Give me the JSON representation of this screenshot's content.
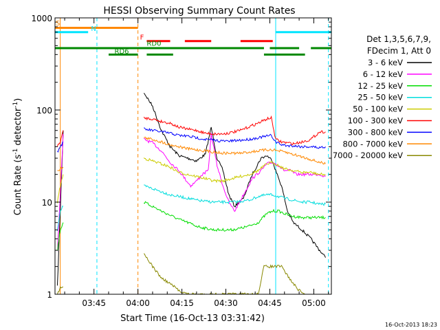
{
  "chart_data": {
    "type": "line",
    "title": "HESSI Observing Summary Count Rates",
    "xlabel": "Start Time (16-Oct-13 03:31:42)",
    "ylabel_main": "Count Rate (s",
    "ylabel_sup1": "-1",
    "ylabel_mid": " detector",
    "ylabel_sup2": "-1",
    "ylabel_end": ")",
    "timestamp": "16-Oct-2013 18:23",
    "y_scale": "log",
    "xlim_minutes": [
      211.7,
      306.0
    ],
    "ylim": [
      1,
      1000
    ],
    "x_ticks": [
      {
        "label": "03:45",
        "minute": 225
      },
      {
        "label": "04:00",
        "minute": 240
      },
      {
        "label": "04:15",
        "minute": 255
      },
      {
        "label": "04:30",
        "minute": 270
      },
      {
        "label": "04:45",
        "minute": 285
      },
      {
        "label": "05:00",
        "minute": 300
      }
    ],
    "y_ticks": [
      {
        "label": "1",
        "value": 1
      },
      {
        "label": "10",
        "value": 10
      },
      {
        "label": "100",
        "value": 100
      },
      {
        "label": "1000",
        "value": 1000
      }
    ],
    "legend_header": [
      "Det 1,3,5,6,7,9,",
      "FDecim 1, Att 0"
    ],
    "series": [
      {
        "name": "3 - 6 keV",
        "color": "#000000",
        "points": [
          [
            212.5,
            1.2
          ],
          [
            213.5,
            8
          ],
          [
            214.5,
            60
          ],
          [
            240,
            null
          ],
          [
            242,
            155
          ],
          [
            245,
            110
          ],
          [
            248,
            60
          ],
          [
            251,
            40
          ],
          [
            254,
            32
          ],
          [
            257,
            30
          ],
          [
            260,
            28
          ],
          [
            263,
            33
          ],
          [
            265,
            65
          ],
          [
            267,
            30
          ],
          [
            269,
            22
          ],
          [
            271,
            12
          ],
          [
            273,
            9
          ],
          [
            276,
            11
          ],
          [
            279,
            20
          ],
          [
            282,
            30
          ],
          [
            284,
            32
          ],
          [
            286,
            28
          ],
          [
            287,
            22
          ],
          [
            289,
            15
          ],
          [
            291,
            8
          ],
          [
            293,
            6
          ],
          [
            296,
            5
          ],
          [
            299,
            4
          ],
          [
            302,
            3
          ],
          [
            304,
            2.5
          ]
        ]
      },
      {
        "name": "6 - 12 keV",
        "color": "#ff00ff",
        "points": [
          [
            212.5,
            3
          ],
          [
            213.5,
            12
          ],
          [
            214.5,
            55
          ],
          [
            240,
            null
          ],
          [
            242,
            48
          ],
          [
            245,
            44
          ],
          [
            248,
            36
          ],
          [
            251,
            27
          ],
          [
            254,
            22
          ],
          [
            256,
            18
          ],
          [
            258,
            15
          ],
          [
            260,
            17
          ],
          [
            262,
            20
          ],
          [
            264,
            22
          ],
          [
            265,
            55
          ],
          [
            267,
            25
          ],
          [
            269,
            15
          ],
          [
            271,
            10
          ],
          [
            273,
            8
          ],
          [
            276,
            12
          ],
          [
            279,
            18
          ],
          [
            282,
            22
          ],
          [
            284,
            26
          ],
          [
            286,
            27
          ],
          [
            288,
            25
          ],
          [
            290,
            22
          ],
          [
            292,
            22
          ],
          [
            294,
            20
          ],
          [
            297,
            20
          ],
          [
            300,
            20
          ],
          [
            302,
            20
          ],
          [
            304,
            19
          ]
        ]
      },
      {
        "name": "12 - 25 keV",
        "color": "#00dd00",
        "points": [
          [
            212.5,
            3
          ],
          [
            213.5,
            5
          ],
          [
            214.5,
            6
          ],
          [
            240,
            null
          ],
          [
            242,
            10
          ],
          [
            245,
            9
          ],
          [
            248,
            8
          ],
          [
            251,
            7.2
          ],
          [
            254,
            6.5
          ],
          [
            257,
            6
          ],
          [
            260,
            5.5
          ],
          [
            263,
            5.2
          ],
          [
            266,
            5
          ],
          [
            269,
            5
          ],
          [
            272,
            5
          ],
          [
            275,
            5.2
          ],
          [
            278,
            5.5
          ],
          [
            281,
            6
          ],
          [
            284,
            7.5
          ],
          [
            286,
            8
          ],
          [
            288,
            8
          ],
          [
            290,
            7.5
          ],
          [
            293,
            7
          ],
          [
            296,
            6.8
          ],
          [
            299,
            6.8
          ],
          [
            302,
            6.8
          ],
          [
            304,
            6.8
          ]
        ]
      },
      {
        "name": "25 - 50 keV",
        "color": "#00dddd",
        "points": [
          [
            212.5,
            5
          ],
          [
            213.5,
            8
          ],
          [
            214.5,
            9
          ],
          [
            240,
            null
          ],
          [
            242,
            15
          ],
          [
            245,
            14
          ],
          [
            248,
            13
          ],
          [
            251,
            12
          ],
          [
            254,
            11.5
          ],
          [
            257,
            11
          ],
          [
            260,
            10.5
          ],
          [
            263,
            10.2
          ],
          [
            266,
            10
          ],
          [
            269,
            10
          ],
          [
            272,
            10
          ],
          [
            275,
            10.2
          ],
          [
            278,
            10.5
          ],
          [
            281,
            11.5
          ],
          [
            284,
            12
          ],
          [
            286,
            12
          ],
          [
            288,
            11.5
          ],
          [
            290,
            11
          ],
          [
            293,
            10.5
          ],
          [
            296,
            10
          ],
          [
            299,
            10
          ],
          [
            302,
            9.5
          ],
          [
            304,
            9.5
          ]
        ]
      },
      {
        "name": "50 - 100 keV",
        "color": "#cccc00",
        "points": [
          [
            212.5,
            10
          ],
          [
            213.5,
            15
          ],
          [
            214.5,
            20
          ],
          [
            240,
            null
          ],
          [
            242,
            30
          ],
          [
            245,
            28
          ],
          [
            248,
            26
          ],
          [
            251,
            24
          ],
          [
            254,
            21
          ],
          [
            257,
            20
          ],
          [
            260,
            19
          ],
          [
            263,
            18
          ],
          [
            266,
            17
          ],
          [
            269,
            17
          ],
          [
            272,
            18
          ],
          [
            275,
            19
          ],
          [
            278,
            20
          ],
          [
            281,
            22
          ],
          [
            284,
            26
          ],
          [
            286,
            27
          ],
          [
            288,
            25
          ],
          [
            290,
            23
          ],
          [
            293,
            22
          ],
          [
            296,
            21
          ],
          [
            299,
            21
          ],
          [
            302,
            20
          ],
          [
            304,
            20
          ]
        ]
      },
      {
        "name": "100 - 300 keV",
        "color": "#ff0000",
        "points": [
          [
            212.5,
            40
          ],
          [
            213.5,
            45
          ],
          [
            214.5,
            60
          ],
          [
            240,
            null
          ],
          [
            242,
            82
          ],
          [
            245,
            80
          ],
          [
            248,
            75
          ],
          [
            251,
            72
          ],
          [
            254,
            65
          ],
          [
            257,
            62
          ],
          [
            260,
            60
          ],
          [
            263,
            56
          ],
          [
            266,
            55
          ],
          [
            269,
            55
          ],
          [
            272,
            57
          ],
          [
            275,
            60
          ],
          [
            278,
            66
          ],
          [
            281,
            72
          ],
          [
            284,
            80
          ],
          [
            285.5,
            82
          ],
          [
            287,
            48
          ],
          [
            289,
            45
          ],
          [
            291,
            44
          ],
          [
            293,
            43
          ],
          [
            296,
            45
          ],
          [
            299,
            48
          ],
          [
            302,
            58
          ],
          [
            304,
            58
          ]
        ]
      },
      {
        "name": "300 - 800 keV",
        "color": "#0000ff",
        "points": [
          [
            212.5,
            35
          ],
          [
            213.5,
            40
          ],
          [
            214.5,
            45
          ],
          [
            240,
            null
          ],
          [
            242,
            62
          ],
          [
            245,
            60
          ],
          [
            248,
            58
          ],
          [
            251,
            56
          ],
          [
            254,
            53
          ],
          [
            257,
            52
          ],
          [
            260,
            50
          ],
          [
            263,
            48
          ],
          [
            266,
            47
          ],
          [
            269,
            46
          ],
          [
            272,
            46
          ],
          [
            275,
            47
          ],
          [
            278,
            48
          ],
          [
            281,
            50
          ],
          [
            284,
            52
          ],
          [
            285.5,
            53
          ],
          [
            287,
            45
          ],
          [
            289,
            42
          ],
          [
            291,
            41
          ],
          [
            293,
            41
          ],
          [
            296,
            40
          ],
          [
            299,
            40
          ],
          [
            302,
            39
          ],
          [
            304,
            40
          ]
        ]
      },
      {
        "name": "800 - 7000 keV",
        "color": "#ff8800",
        "points": [
          [
            212.5,
            22
          ],
          [
            213.5,
            23
          ],
          [
            214.5,
            24
          ],
          [
            240,
            null
          ],
          [
            242,
            50
          ],
          [
            245,
            48
          ],
          [
            248,
            45
          ],
          [
            251,
            42
          ],
          [
            254,
            40
          ],
          [
            257,
            38
          ],
          [
            260,
            37
          ],
          [
            263,
            36
          ],
          [
            266,
            35
          ],
          [
            269,
            34
          ],
          [
            272,
            34
          ],
          [
            275,
            34
          ],
          [
            278,
            35
          ],
          [
            281,
            36
          ],
          [
            284,
            37
          ],
          [
            286,
            37
          ],
          [
            288,
            36
          ],
          [
            290,
            35
          ],
          [
            293,
            33
          ],
          [
            296,
            31
          ],
          [
            299,
            29
          ],
          [
            302,
            27
          ],
          [
            304,
            26
          ]
        ]
      },
      {
        "name": "7000 - 20000 keV",
        "color": "#888800",
        "points": [
          [
            212.5,
            1
          ],
          [
            213.5,
            1.2
          ],
          [
            214.5,
            1.2
          ],
          [
            240,
            null
          ],
          [
            242,
            2.8
          ],
          [
            245,
            2
          ],
          [
            248,
            1.5
          ],
          [
            251,
            1.3
          ],
          [
            254,
            1.1
          ],
          [
            257,
            1
          ],
          [
            281,
            1
          ],
          [
            283,
            2
          ],
          [
            285,
            2
          ],
          [
            287,
            2
          ],
          [
            289,
            2
          ],
          [
            291,
            1.6
          ],
          [
            293,
            1.3
          ],
          [
            295,
            1.1
          ],
          [
            297,
            1
          ]
        ]
      }
    ],
    "state_bars": [
      {
        "label": "N",
        "color": "#00e5ff",
        "y": 700,
        "segments": [
          [
            211.7,
            223
          ]
        ],
        "label_minute": 224,
        "label_y": 720
      },
      {
        "label": "",
        "color": "#00e5ff",
        "y": 700,
        "segments": [
          [
            287,
            306
          ]
        ]
      },
      {
        "label": "S",
        "color": "#ff8800",
        "y": 780,
        "segments": [
          [
            211.7,
            240
          ]
        ],
        "label_minute": 211.9,
        "label_y": 830
      },
      {
        "label": "F",
        "color": "#ff0000",
        "y": 560,
        "segments": [
          [
            243,
            251
          ],
          [
            256,
            265
          ],
          [
            275,
            286
          ]
        ],
        "label_minute": 240.7,
        "label_y": 580
      },
      {
        "label": "RD0",
        "color": "#008800",
        "y": 470,
        "segments": [
          [
            211.7,
            283
          ],
          [
            285,
            295
          ],
          [
            299,
            306
          ]
        ],
        "label_minute": 243,
        "label_y": 500
      },
      {
        "label": "RD6",
        "color": "#008800",
        "y": 400,
        "segments": [
          [
            230,
            240
          ],
          [
            243,
            252
          ],
          [
            283,
            297
          ]
        ],
        "label_minute": 232,
        "label_y": 410
      }
    ],
    "vlines": [
      {
        "minute": 211.7,
        "color": "#00e5ff",
        "style": "solid"
      },
      {
        "minute": 213.5,
        "color": "#ff8800",
        "style": "solid"
      },
      {
        "minute": 226,
        "color": "#00e5ff",
        "style": "dashed"
      },
      {
        "minute": 240,
        "color": "#ff8800",
        "style": "dashed"
      },
      {
        "minute": 287,
        "color": "#00e5ff",
        "style": "solid"
      },
      {
        "minute": 305,
        "color": "#00e5ff",
        "style": "dashed"
      }
    ]
  }
}
